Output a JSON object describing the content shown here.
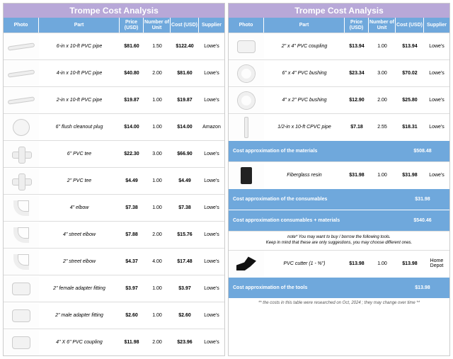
{
  "title": "Trompe Cost Analysis",
  "headers": {
    "photo": "Photo",
    "part": "Part",
    "price": "Price (USD)",
    "units": "Number of Unit",
    "cost": "Cost (USD)",
    "supplier": "Supplier"
  },
  "colors": {
    "title_bg": "#b8a8d8",
    "header_bg": "#6fa8dc",
    "summary_bg": "#6fa8dc"
  },
  "left_rows": [
    {
      "part": "6-in x 10-ft PVC pipe",
      "price": "$81.60",
      "units": "1.50",
      "cost": "$122.40",
      "supplier": "Lowe's",
      "shape": "ph-pipe"
    },
    {
      "part": "4-in x 10-ft PVC pipe",
      "price": "$40.80",
      "units": "2.00",
      "cost": "$81.60",
      "supplier": "Lowe's",
      "shape": "ph-pipe"
    },
    {
      "part": "2-in x 10-ft PVC pipe",
      "price": "$19.87",
      "units": "1.00",
      "cost": "$19.87",
      "supplier": "Lowe's",
      "shape": "ph-pipe"
    },
    {
      "part": "6\" flush cleanout plug",
      "price": "$14.00",
      "units": "1.00",
      "cost": "$14.00",
      "supplier": "Amazon",
      "shape": "ph-plug"
    },
    {
      "part": "6\" PVC tee",
      "price": "$22.30",
      "units": "3.00",
      "cost": "$66.90",
      "supplier": "Lowe's",
      "shape": "ph-tee"
    },
    {
      "part": "2\" PVC tee",
      "price": "$4.49",
      "units": "1.00",
      "cost": "$4.49",
      "supplier": "Lowe's",
      "shape": "ph-tee"
    },
    {
      "part": "4\" elbow",
      "price": "$7.38",
      "units": "1.00",
      "cost": "$7.38",
      "supplier": "Lowe's",
      "shape": "ph-elbow"
    },
    {
      "part": "4\" street elbow",
      "price": "$7.88",
      "units": "2.00",
      "cost": "$15.76",
      "supplier": "Lowe's",
      "shape": "ph-elbow"
    },
    {
      "part": "2\" street elbow",
      "price": "$4.37",
      "units": "4.00",
      "cost": "$17.48",
      "supplier": "Lowe's",
      "shape": "ph-elbow"
    },
    {
      "part": "2\" female adapter fitting",
      "price": "$3.97",
      "units": "1.00",
      "cost": "$3.97",
      "supplier": "Lowe's",
      "shape": "ph-coupling"
    },
    {
      "part": "2\" male adapter fitting",
      "price": "$2.60",
      "units": "1.00",
      "cost": "$2.60",
      "supplier": "Lowe's",
      "shape": "ph-coupling"
    },
    {
      "part": "4\" X 6\" PVC coupling",
      "price": "$11.98",
      "units": "2.00",
      "cost": "$23.96",
      "supplier": "Lowe's",
      "shape": "ph-coupling"
    }
  ],
  "right_items": [
    {
      "type": "row",
      "part": "2\" x 4\" PVC coupling",
      "price": "$13.94",
      "units": "1.00",
      "cost": "$13.94",
      "supplier": "Lowe's",
      "shape": "ph-coupling"
    },
    {
      "type": "row",
      "part": "6\" x 4\" PVC bushing",
      "price": "$23.34",
      "units": "3.00",
      "cost": "$70.02",
      "supplier": "Lowe's",
      "shape": "ph-ring"
    },
    {
      "type": "row",
      "part": "4\" x 2\" PVC bushing",
      "price": "$12.90",
      "units": "2.00",
      "cost": "$25.80",
      "supplier": "Lowe's",
      "shape": "ph-ring"
    },
    {
      "type": "row",
      "part": "1/2-in x 10-ft CPVC pipe",
      "price": "$7.18",
      "units": "2.55",
      "cost": "$18.31",
      "supplier": "Lowe's",
      "shape": "ph-thinpipe"
    },
    {
      "type": "summary",
      "label": "Cost  approximation of the materials",
      "value": "$508.48"
    },
    {
      "type": "row",
      "part": "Fiberglass resin",
      "price": "$31.98",
      "units": "1.00",
      "cost": "$31.98",
      "supplier": "Lowe's",
      "shape": "ph-can"
    },
    {
      "type": "summary",
      "label": "Cost  approximation of the consumables",
      "value": "$31.98"
    },
    {
      "type": "summary",
      "label": "Cost approximation consumables + materials",
      "value": "$540.46"
    },
    {
      "type": "note",
      "text": "note* You may want to buy / borrow the following tools.\nKeep in mind that these are only suggestions, you may choose different ones."
    },
    {
      "type": "row",
      "part": "PVC cutter (1 - ⅝\")",
      "price": "$13.98",
      "units": "1.00",
      "cost": "$13.98",
      "supplier": "Home Depot",
      "shape": "ph-cutter"
    },
    {
      "type": "summary",
      "label": "Cost approximation of the tools",
      "value": "$13.98"
    }
  ],
  "footnote": "** the costs in this table were researched on Oct, 2024 ; they may change over time **"
}
